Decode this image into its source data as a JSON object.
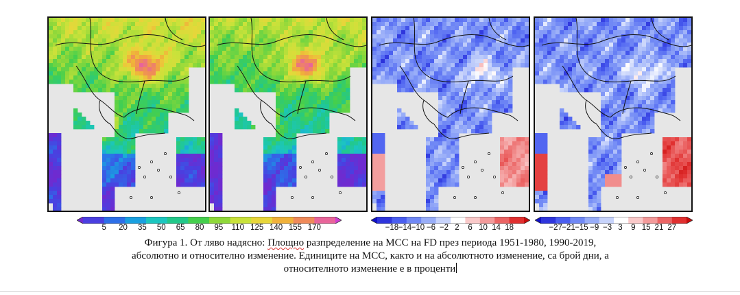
{
  "figure": {
    "panels": [
      {
        "name": "fd-1951-1980",
        "palette": "abs",
        "base": 0
      },
      {
        "name": "fd-1990-2019",
        "palette": "abs",
        "base": 1
      },
      {
        "name": "absolute-change",
        "palette": "div",
        "base": 2
      },
      {
        "name": "relative-change",
        "palette": "div",
        "base": 3
      }
    ],
    "colorbars": [
      {
        "name": "colorbar-days",
        "ticks": [
          "5",
          "20",
          "35",
          "50",
          "65",
          "80",
          "95",
          "110",
          "125",
          "140",
          "155",
          "170"
        ],
        "colors": [
          "#6e2bd0",
          "#4a3fe0",
          "#2d6fe8",
          "#1aa0e0",
          "#1cc6c0",
          "#22c88a",
          "#45cf4d",
          "#8fd83a",
          "#c9e23a",
          "#e8d63a",
          "#f0b13a",
          "#ef8a5a",
          "#e8659a",
          "#d13fd0"
        ]
      },
      {
        "name": "colorbar-abs-change",
        "ticks": [
          "−18",
          "−14",
          "−10",
          "−6",
          "−2",
          "2",
          "6",
          "10",
          "14",
          "18"
        ],
        "colors": [
          "#1010c8",
          "#2e35dc",
          "#4a5ef0",
          "#7088f5",
          "#98adf8",
          "#c7d3fb",
          "#ffffff",
          "#f9c9c9",
          "#f39a9a",
          "#eb6464",
          "#e03030",
          "#c80d0d"
        ]
      },
      {
        "name": "colorbar-rel-change",
        "ticks": [
          "−27",
          "−21",
          "−15",
          "−9",
          "−3",
          "3",
          "9",
          "15",
          "21",
          "27"
        ],
        "colors": [
          "#1010c8",
          "#2e35dc",
          "#4a5ef0",
          "#7088f5",
          "#98adf8",
          "#c7d3fb",
          "#ffffff",
          "#f9c9c9",
          "#f39a9a",
          "#eb6464",
          "#e03030",
          "#c80d0d"
        ]
      }
    ]
  },
  "caption": {
    "line1_a": "Фигура 1. От ляво надясно: ",
    "line1_underlined": "Площно",
    "line1_b": " разпределение на МСС на FD през периода 1951-1980, 1990-2019,",
    "line2": "абсолютно и относително изменение. Единиците на МСС, както и на абсолютното изменение, са брой дни, а",
    "line3": "относителното изменение е в проценти"
  }
}
